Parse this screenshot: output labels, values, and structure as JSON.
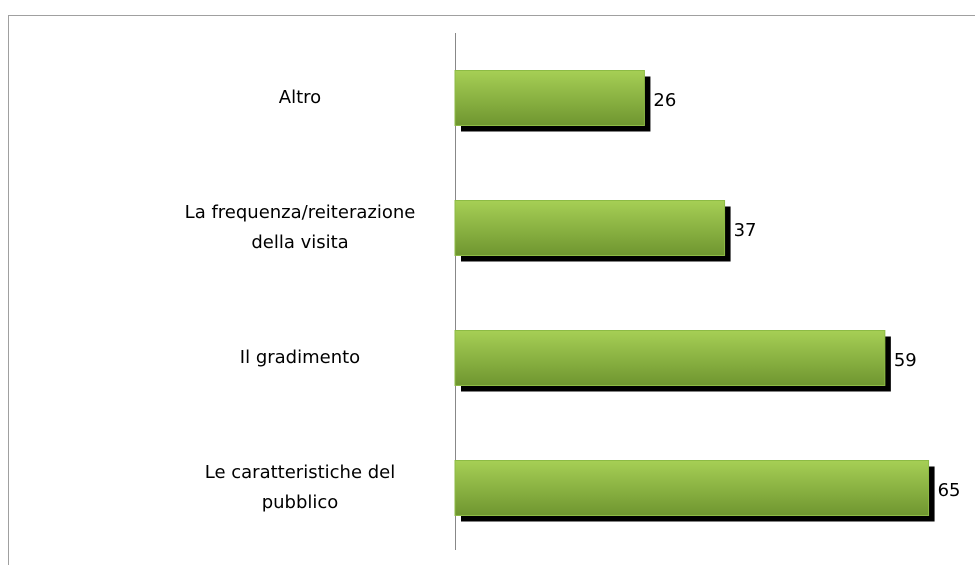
{
  "chart_data": {
    "type": "bar",
    "orientation": "horizontal",
    "categories": [
      "Altro",
      "La frequenza/reiterazione della visita",
      "Il gradimento",
      "Le caratteristiche del pubblico"
    ],
    "values": [
      26,
      37,
      59,
      65
    ],
    "color": "#8dbb45",
    "xlim": [
      0,
      70
    ]
  }
}
